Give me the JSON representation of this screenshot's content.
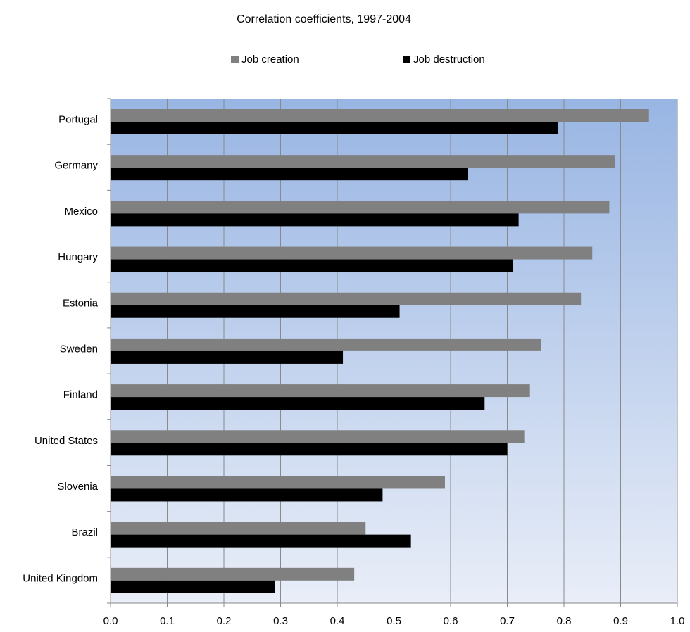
{
  "chart_data": {
    "type": "hbar",
    "title": "Correlation coefficients, 1997-2004",
    "categories": [
      "Portugal",
      "Germany",
      "Mexico",
      "Hungary",
      "Estonia",
      "Sweden",
      "Finland",
      "United States",
      "Slovenia",
      "Brazil",
      "United Kingdom"
    ],
    "series": [
      {
        "name": "Job creation",
        "color": "#808080",
        "values": [
          0.95,
          0.89,
          0.88,
          0.85,
          0.83,
          0.76,
          0.74,
          0.73,
          0.59,
          0.45,
          0.43
        ]
      },
      {
        "name": "Job destruction",
        "color": "#000000",
        "values": [
          0.79,
          0.63,
          0.72,
          0.71,
          0.51,
          0.41,
          0.66,
          0.7,
          0.48,
          0.53,
          0.29
        ]
      }
    ],
    "xlim": [
      0,
      1
    ],
    "xticks": [
      {
        "value": 0,
        "label": "0.0"
      },
      0.1,
      0.2,
      0.3,
      0.4,
      0.5,
      0.6,
      0.7,
      0.8,
      0.9,
      {
        "value": 1,
        "label": "1.0"
      }
    ],
    "grid": true
  }
}
